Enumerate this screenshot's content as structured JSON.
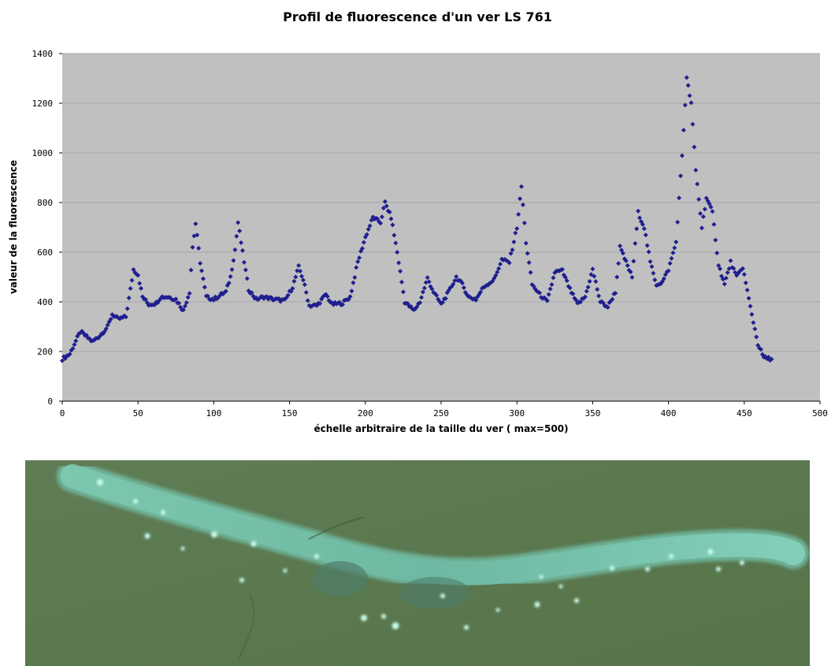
{
  "chart_data": {
    "type": "scatter",
    "title": "Profil de fluorescence d'un ver LS 761",
    "xlabel": "échelle arbitraire de la taille du ver ( max=500)",
    "ylabel": "valeur de la fluorescence",
    "xlim": [
      0,
      500
    ],
    "ylim": [
      0,
      1400
    ],
    "x_ticks": [
      0,
      50,
      100,
      150,
      200,
      250,
      300,
      350,
      400,
      450,
      500
    ],
    "y_ticks": [
      0,
      200,
      400,
      600,
      800,
      1000,
      1200,
      1400
    ],
    "grid": "horizontal",
    "plot_background": "#c0c0c0",
    "marker_color": "#1f1f8f",
    "marker": "diamond",
    "profile_control_points": [
      [
        0,
        170
      ],
      [
        5,
        190
      ],
      [
        8,
        230
      ],
      [
        12,
        280
      ],
      [
        15,
        265
      ],
      [
        20,
        240
      ],
      [
        25,
        265
      ],
      [
        30,
        300
      ],
      [
        33,
        350
      ],
      [
        37,
        330
      ],
      [
        42,
        340
      ],
      [
        45,
        450
      ],
      [
        47,
        530
      ],
      [
        50,
        510
      ],
      [
        53,
        420
      ],
      [
        57,
        390
      ],
      [
        62,
        395
      ],
      [
        65,
        420
      ],
      [
        70,
        420
      ],
      [
        75,
        410
      ],
      [
        80,
        365
      ],
      [
        84,
        440
      ],
      [
        86,
        620
      ],
      [
        88,
        715
      ],
      [
        91,
        560
      ],
      [
        95,
        420
      ],
      [
        100,
        410
      ],
      [
        105,
        430
      ],
      [
        108,
        440
      ],
      [
        111,
        500
      ],
      [
        114,
        610
      ],
      [
        116,
        720
      ],
      [
        119,
        600
      ],
      [
        123,
        450
      ],
      [
        128,
        410
      ],
      [
        133,
        420
      ],
      [
        140,
        410
      ],
      [
        147,
        405
      ],
      [
        152,
        460
      ],
      [
        156,
        540
      ],
      [
        159,
        490
      ],
      [
        163,
        385
      ],
      [
        168,
        385
      ],
      [
        174,
        430
      ],
      [
        178,
        390
      ],
      [
        185,
        395
      ],
      [
        190,
        420
      ],
      [
        195,
        560
      ],
      [
        200,
        660
      ],
      [
        205,
        740
      ],
      [
        210,
        720
      ],
      [
        213,
        800
      ],
      [
        217,
        740
      ],
      [
        221,
        600
      ],
      [
        226,
        400
      ],
      [
        232,
        365
      ],
      [
        236,
        400
      ],
      [
        241,
        495
      ],
      [
        245,
        440
      ],
      [
        250,
        390
      ],
      [
        255,
        440
      ],
      [
        260,
        500
      ],
      [
        264,
        470
      ],
      [
        268,
        420
      ],
      [
        273,
        410
      ],
      [
        278,
        460
      ],
      [
        285,
        490
      ],
      [
        290,
        570
      ],
      [
        295,
        560
      ],
      [
        300,
        700
      ],
      [
        303,
        865
      ],
      [
        306,
        640
      ],
      [
        310,
        470
      ],
      [
        315,
        430
      ],
      [
        320,
        400
      ],
      [
        325,
        520
      ],
      [
        330,
        525
      ],
      [
        335,
        450
      ],
      [
        340,
        390
      ],
      [
        345,
        420
      ],
      [
        350,
        530
      ],
      [
        355,
        400
      ],
      [
        360,
        380
      ],
      [
        365,
        440
      ],
      [
        368,
        620
      ],
      [
        372,
        560
      ],
      [
        376,
        500
      ],
      [
        380,
        760
      ],
      [
        384,
        700
      ],
      [
        388,
        560
      ],
      [
        392,
        470
      ],
      [
        396,
        480
      ],
      [
        400,
        530
      ],
      [
        405,
        640
      ],
      [
        409,
        990
      ],
      [
        412,
        1300
      ],
      [
        415,
        1200
      ],
      [
        418,
        930
      ],
      [
        422,
        700
      ],
      [
        425,
        820
      ],
      [
        429,
        760
      ],
      [
        433,
        550
      ],
      [
        437,
        470
      ],
      [
        441,
        560
      ],
      [
        445,
        500
      ],
      [
        449,
        540
      ],
      [
        454,
        380
      ],
      [
        459,
        230
      ],
      [
        463,
        175
      ],
      [
        468,
        170
      ]
    ]
  },
  "photo": {
    "description_icon": "fluorescent-worm-image",
    "background_color": "#5c7a52"
  }
}
